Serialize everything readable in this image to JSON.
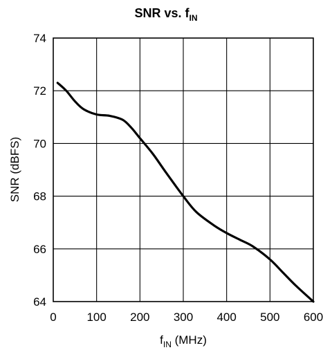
{
  "chart_data": {
    "type": "line",
    "title": {
      "main": "SNR vs. f",
      "sub": "IN"
    },
    "xlabel": {
      "main": "f",
      "sub": "IN",
      "rest": " (MHz)"
    },
    "ylabel": "SNR (dBFS)",
    "xlim": [
      0,
      600
    ],
    "ylim": [
      64,
      74
    ],
    "x_ticks": [
      "0",
      "100",
      "200",
      "300",
      "400",
      "500",
      "600"
    ],
    "y_ticks": [
      "64",
      "66",
      "68",
      "70",
      "72",
      "74"
    ],
    "grid": true,
    "series": [
      {
        "color": "#000000",
        "points": [
          [
            10,
            72.3
          ],
          [
            30,
            72.0
          ],
          [
            50,
            71.6
          ],
          [
            70,
            71.3
          ],
          [
            100,
            71.1
          ],
          [
            130,
            71.05
          ],
          [
            160,
            70.9
          ],
          [
            180,
            70.6
          ],
          [
            200,
            70.2
          ],
          [
            230,
            69.6
          ],
          [
            260,
            68.9
          ],
          [
            300,
            68.0
          ],
          [
            330,
            67.4
          ],
          [
            370,
            66.9
          ],
          [
            400,
            66.6
          ],
          [
            430,
            66.35
          ],
          [
            460,
            66.1
          ],
          [
            500,
            65.6
          ],
          [
            530,
            65.1
          ],
          [
            560,
            64.6
          ],
          [
            600,
            64.0
          ]
        ]
      }
    ]
  }
}
